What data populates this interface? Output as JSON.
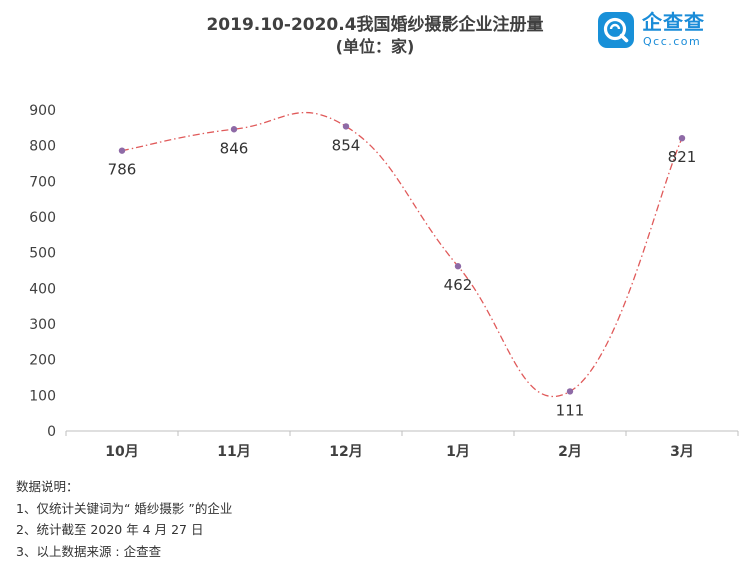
{
  "header": {
    "title": "2019.10-2020.4我国婚纱摄影企业注册量",
    "subtitle": "(单位：家)"
  },
  "logo": {
    "name": "企查查",
    "domain": "Qcc.com",
    "color": "#1890d8"
  },
  "chart_data": {
    "type": "line",
    "title": "2019.10-2020.4我国婚纱摄影企业注册量",
    "subtitle": "(单位：家)",
    "categories": [
      "10月",
      "11月",
      "12月",
      "1月",
      "2月",
      "3月"
    ],
    "series": [
      {
        "values": [
          786,
          846,
          854,
          462,
          111,
          821
        ],
        "color": "#e05a5a",
        "marker_color": "#8e6aa6"
      }
    ],
    "ylim": [
      0,
      900
    ],
    "yticks": [
      0,
      100,
      200,
      300,
      400,
      500,
      600,
      700,
      800,
      900
    ],
    "data_labels": [
      "786",
      "846",
      "854",
      "462",
      "111",
      "821"
    ],
    "line_style": "dash-dot smoothed",
    "grid": false,
    "legend": "none"
  },
  "notes": {
    "heading": "数据说明：",
    "items": [
      "1、仅统计关键词为“ 婚纱摄影 ”的企业",
      "2、统计截至 2020 年 4 月 27 日",
      "3、以上数据来源 : 企查查"
    ]
  }
}
